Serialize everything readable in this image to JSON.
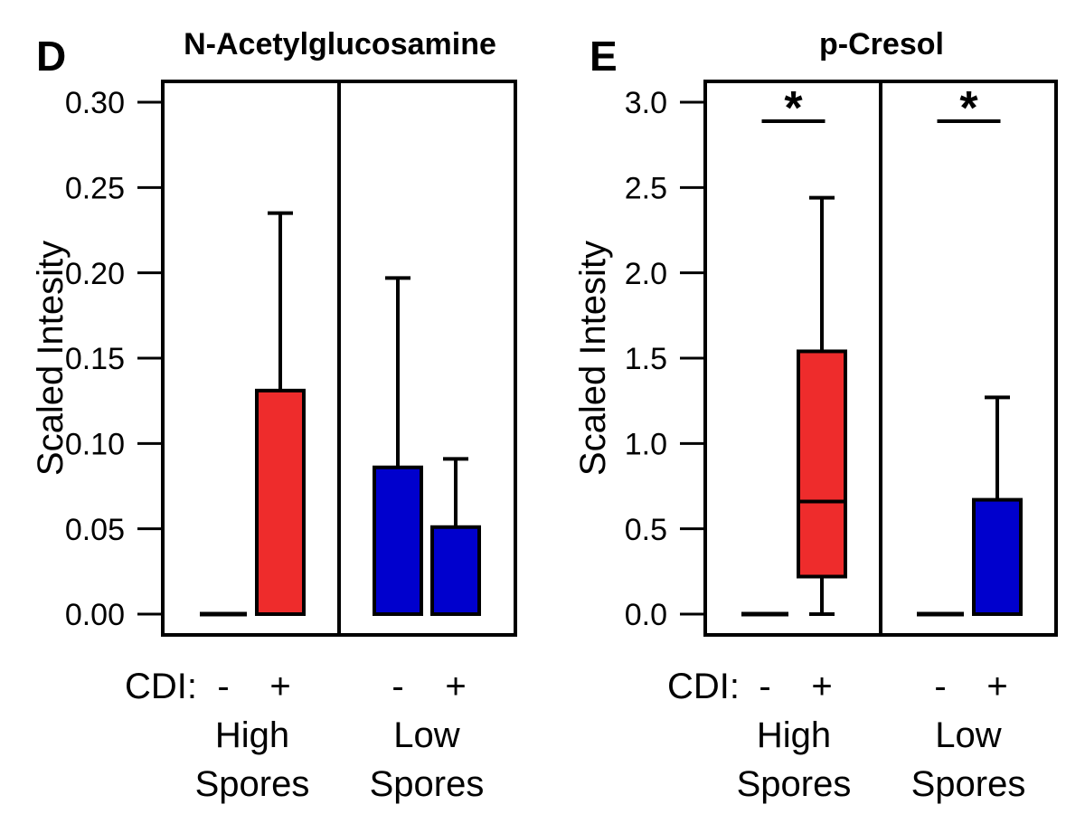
{
  "chart_data": [
    {
      "type": "box",
      "panel_letter": "D",
      "title": "N-Acetylglucosamine",
      "ylabel": "Scaled Intesity",
      "ylim": [
        0,
        0.3
      ],
      "yticks": [
        "0.00",
        "0.05",
        "0.10",
        "0.15",
        "0.20",
        "0.25",
        "0.30"
      ],
      "x_prefix": "CDI:",
      "groups": [
        {
          "name": "High Spores",
          "label_lines": [
            "High",
            "Spores"
          ],
          "boxes": [
            {
              "cdi": "-",
              "color": "#ffffff",
              "min": 0,
              "q1": 0,
              "median": 0,
              "q3": 0,
              "max": 0
            },
            {
              "cdi": "+",
              "color": "#ee2c2c",
              "min": 0,
              "q1": 0,
              "median": 0,
              "q3": 0.131,
              "max": 0.235
            }
          ],
          "significance": ""
        },
        {
          "name": "Low Spores",
          "label_lines": [
            "Low",
            "Spores"
          ],
          "boxes": [
            {
              "cdi": "-",
              "color": "#0000cd",
              "min": 0,
              "q1": 0,
              "median": 0,
              "q3": 0.086,
              "max": 0.197
            },
            {
              "cdi": "+",
              "color": "#0000cd",
              "min": 0,
              "q1": 0,
              "median": 0,
              "q3": 0.051,
              "max": 0.091
            }
          ],
          "significance": ""
        }
      ]
    },
    {
      "type": "box",
      "panel_letter": "E",
      "title": "p-Cresol",
      "ylabel": "Scaled Intesity",
      "ylim": [
        0,
        3.0
      ],
      "yticks": [
        "0.0",
        "0.5",
        "1.0",
        "1.5",
        "2.0",
        "2.5",
        "3.0"
      ],
      "x_prefix": "CDI:",
      "groups": [
        {
          "name": "High Spores",
          "label_lines": [
            "High",
            "Spores"
          ],
          "boxes": [
            {
              "cdi": "-",
              "color": "#ffffff",
              "min": 0,
              "q1": 0,
              "median": 0,
              "q3": 0,
              "max": 0
            },
            {
              "cdi": "+",
              "color": "#ee2c2c",
              "min": 0,
              "q1": 0.22,
              "median": 0.66,
              "q3": 1.54,
              "max": 2.44
            }
          ],
          "significance": "*"
        },
        {
          "name": "Low Spores",
          "label_lines": [
            "Low",
            "Spores"
          ],
          "boxes": [
            {
              "cdi": "-",
              "color": "#ffffff",
              "min": 0,
              "q1": 0,
              "median": 0,
              "q3": 0,
              "max": 0
            },
            {
              "cdi": "+",
              "color": "#0000cd",
              "min": 0,
              "q1": 0,
              "median": 0,
              "q3": 0.67,
              "max": 1.27
            }
          ],
          "significance": "*"
        }
      ]
    }
  ]
}
